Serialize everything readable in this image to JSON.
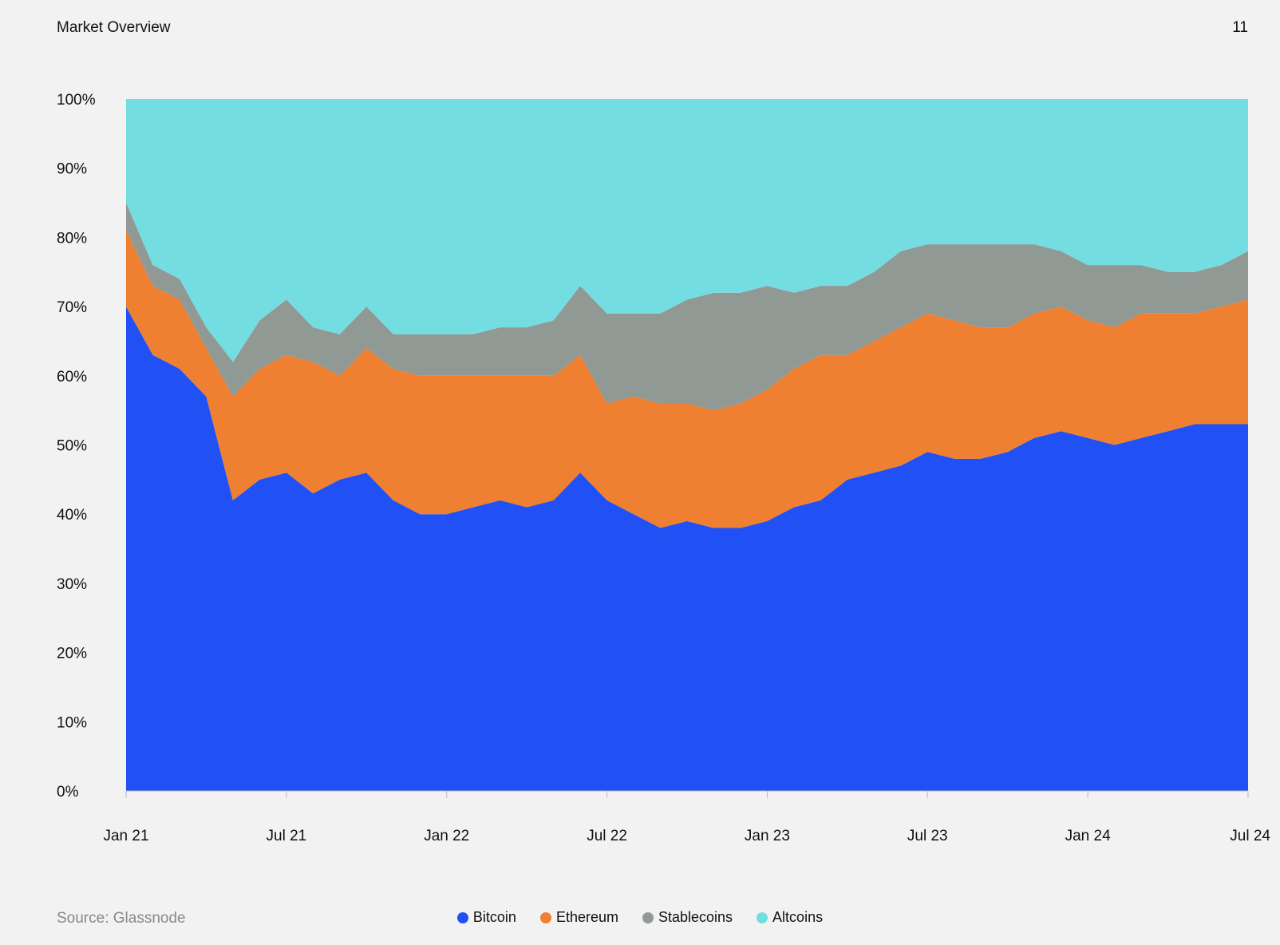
{
  "header": {
    "title": "Market Overview",
    "page_number": "11"
  },
  "source": "Source: Glassnode",
  "chart_data": {
    "type": "area",
    "stacked": true,
    "normalized": true,
    "y_unit": "%",
    "ylim": [
      0,
      100
    ],
    "y_ticks": [
      "0%",
      "10%",
      "20%",
      "30%",
      "40%",
      "50%",
      "60%",
      "70%",
      "80%",
      "90%",
      "100%"
    ],
    "x_ticks": [
      "Jan 21",
      "Jul 21",
      "Jan 22",
      "Jul 22",
      "Jan 23",
      "Jul 23",
      "Jan 24",
      "Jul 24"
    ],
    "xlim": [
      "2021-01",
      "2024-07"
    ],
    "grid": false,
    "legend_position": "bottom",
    "x": [
      "2021-01",
      "2021-02",
      "2021-03",
      "2021-04",
      "2021-05",
      "2021-06",
      "2021-07",
      "2021-08",
      "2021-09",
      "2021-10",
      "2021-11",
      "2021-12",
      "2022-01",
      "2022-02",
      "2022-03",
      "2022-04",
      "2022-05",
      "2022-06",
      "2022-07",
      "2022-08",
      "2022-09",
      "2022-10",
      "2022-11",
      "2022-12",
      "2023-01",
      "2023-02",
      "2023-03",
      "2023-04",
      "2023-05",
      "2023-06",
      "2023-07",
      "2023-08",
      "2023-09",
      "2023-10",
      "2023-11",
      "2023-12",
      "2024-01",
      "2024-02",
      "2024-03",
      "2024-04",
      "2024-05",
      "2024-06",
      "2024-07"
    ],
    "series": [
      {
        "name": "Bitcoin",
        "color": "#2150f5",
        "values": [
          70,
          63,
          61,
          57,
          42,
          45,
          46,
          43,
          45,
          46,
          42,
          40,
          40,
          41,
          42,
          41,
          42,
          46,
          42,
          40,
          38,
          39,
          38,
          38,
          39,
          41,
          42,
          45,
          46,
          47,
          49,
          48,
          48,
          49,
          51,
          52,
          51,
          50,
          51,
          52,
          53,
          53,
          53
        ]
      },
      {
        "name": "Ethereum",
        "color": "#ef7f31",
        "values": [
          11,
          10,
          10,
          7,
          15,
          16,
          17,
          19,
          15,
          18,
          19,
          20,
          20,
          19,
          18,
          19,
          18,
          17,
          14,
          17,
          18,
          17,
          17,
          18,
          19,
          20,
          21,
          18,
          19,
          20,
          20,
          20,
          19,
          18,
          18,
          18,
          17,
          17,
          18,
          17,
          16,
          17,
          18
        ]
      },
      {
        "name": "Stablecoins",
        "color": "#919995",
        "values": [
          4,
          3,
          3,
          3,
          5,
          7,
          8,
          5,
          6,
          6,
          5,
          6,
          6,
          6,
          7,
          7,
          8,
          10,
          13,
          12,
          13,
          15,
          17,
          16,
          15,
          11,
          10,
          10,
          10,
          11,
          10,
          11,
          12,
          12,
          10,
          8,
          8,
          9,
          7,
          6,
          6,
          6,
          7
        ]
      },
      {
        "name": "Altcoins",
        "color": "#74dde1",
        "values": [
          15,
          24,
          26,
          33,
          38,
          32,
          29,
          33,
          34,
          30,
          34,
          34,
          34,
          34,
          33,
          33,
          32,
          27,
          31,
          31,
          31,
          29,
          28,
          28,
          27,
          28,
          27,
          27,
          25,
          22,
          21,
          21,
          21,
          21,
          21,
          22,
          24,
          24,
          24,
          25,
          25,
          24,
          22
        ]
      }
    ]
  }
}
